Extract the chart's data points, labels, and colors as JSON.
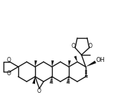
{
  "bg": "#ffffff",
  "col": "#111111",
  "lw": 1.0,
  "fig_w": 1.68,
  "fig_h": 1.55,
  "dpi": 100,
  "xlim": [
    0,
    168
  ],
  "ylim": [
    0,
    155
  ]
}
